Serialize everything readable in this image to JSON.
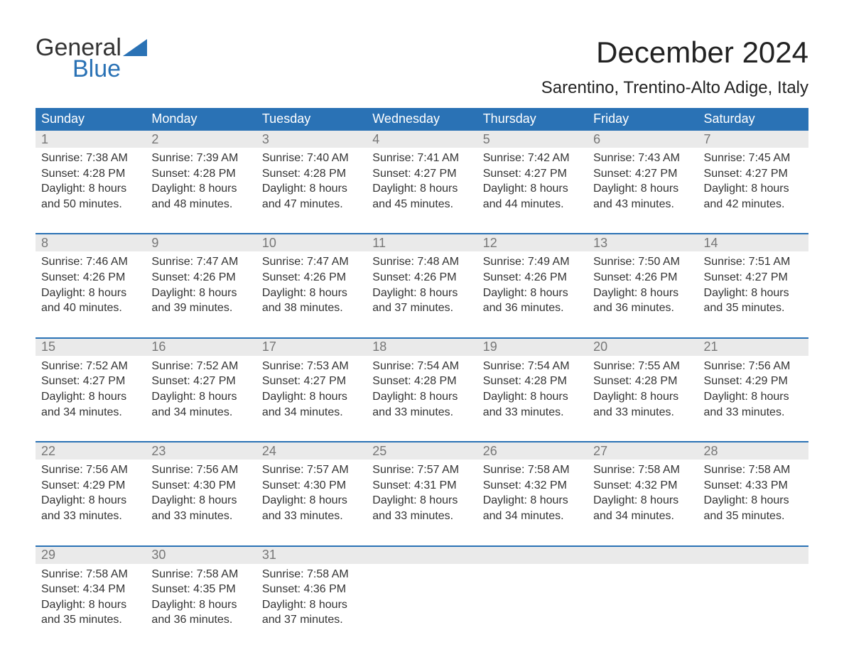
{
  "brand": {
    "word1": "General",
    "word2": "Blue",
    "accent_color": "#2a72b5"
  },
  "title": {
    "month": "December 2024",
    "location": "Sarentino, Trentino-Alto Adige, Italy"
  },
  "columns": [
    "Sunday",
    "Monday",
    "Tuesday",
    "Wednesday",
    "Thursday",
    "Friday",
    "Saturday"
  ],
  "colors": {
    "header_bg": "#2a72b5",
    "header_text": "#ffffff",
    "daynum_bg": "#eaeaea",
    "daynum_text": "#777777",
    "body_text": "#333333",
    "rule": "#2a72b5",
    "page_bg": "#ffffff"
  },
  "weeks": [
    [
      {
        "n": "1",
        "sunrise": "Sunrise: 7:38 AM",
        "sunset": "Sunset: 4:28 PM",
        "d1": "Daylight: 8 hours",
        "d2": "and 50 minutes."
      },
      {
        "n": "2",
        "sunrise": "Sunrise: 7:39 AM",
        "sunset": "Sunset: 4:28 PM",
        "d1": "Daylight: 8 hours",
        "d2": "and 48 minutes."
      },
      {
        "n": "3",
        "sunrise": "Sunrise: 7:40 AM",
        "sunset": "Sunset: 4:28 PM",
        "d1": "Daylight: 8 hours",
        "d2": "and 47 minutes."
      },
      {
        "n": "4",
        "sunrise": "Sunrise: 7:41 AM",
        "sunset": "Sunset: 4:27 PM",
        "d1": "Daylight: 8 hours",
        "d2": "and 45 minutes."
      },
      {
        "n": "5",
        "sunrise": "Sunrise: 7:42 AM",
        "sunset": "Sunset: 4:27 PM",
        "d1": "Daylight: 8 hours",
        "d2": "and 44 minutes."
      },
      {
        "n": "6",
        "sunrise": "Sunrise: 7:43 AM",
        "sunset": "Sunset: 4:27 PM",
        "d1": "Daylight: 8 hours",
        "d2": "and 43 minutes."
      },
      {
        "n": "7",
        "sunrise": "Sunrise: 7:45 AM",
        "sunset": "Sunset: 4:27 PM",
        "d1": "Daylight: 8 hours",
        "d2": "and 42 minutes."
      }
    ],
    [
      {
        "n": "8",
        "sunrise": "Sunrise: 7:46 AM",
        "sunset": "Sunset: 4:26 PM",
        "d1": "Daylight: 8 hours",
        "d2": "and 40 minutes."
      },
      {
        "n": "9",
        "sunrise": "Sunrise: 7:47 AM",
        "sunset": "Sunset: 4:26 PM",
        "d1": "Daylight: 8 hours",
        "d2": "and 39 minutes."
      },
      {
        "n": "10",
        "sunrise": "Sunrise: 7:47 AM",
        "sunset": "Sunset: 4:26 PM",
        "d1": "Daylight: 8 hours",
        "d2": "and 38 minutes."
      },
      {
        "n": "11",
        "sunrise": "Sunrise: 7:48 AM",
        "sunset": "Sunset: 4:26 PM",
        "d1": "Daylight: 8 hours",
        "d2": "and 37 minutes."
      },
      {
        "n": "12",
        "sunrise": "Sunrise: 7:49 AM",
        "sunset": "Sunset: 4:26 PM",
        "d1": "Daylight: 8 hours",
        "d2": "and 36 minutes."
      },
      {
        "n": "13",
        "sunrise": "Sunrise: 7:50 AM",
        "sunset": "Sunset: 4:26 PM",
        "d1": "Daylight: 8 hours",
        "d2": "and 36 minutes."
      },
      {
        "n": "14",
        "sunrise": "Sunrise: 7:51 AM",
        "sunset": "Sunset: 4:27 PM",
        "d1": "Daylight: 8 hours",
        "d2": "and 35 minutes."
      }
    ],
    [
      {
        "n": "15",
        "sunrise": "Sunrise: 7:52 AM",
        "sunset": "Sunset: 4:27 PM",
        "d1": "Daylight: 8 hours",
        "d2": "and 34 minutes."
      },
      {
        "n": "16",
        "sunrise": "Sunrise: 7:52 AM",
        "sunset": "Sunset: 4:27 PM",
        "d1": "Daylight: 8 hours",
        "d2": "and 34 minutes."
      },
      {
        "n": "17",
        "sunrise": "Sunrise: 7:53 AM",
        "sunset": "Sunset: 4:27 PM",
        "d1": "Daylight: 8 hours",
        "d2": "and 34 minutes."
      },
      {
        "n": "18",
        "sunrise": "Sunrise: 7:54 AM",
        "sunset": "Sunset: 4:28 PM",
        "d1": "Daylight: 8 hours",
        "d2": "and 33 minutes."
      },
      {
        "n": "19",
        "sunrise": "Sunrise: 7:54 AM",
        "sunset": "Sunset: 4:28 PM",
        "d1": "Daylight: 8 hours",
        "d2": "and 33 minutes."
      },
      {
        "n": "20",
        "sunrise": "Sunrise: 7:55 AM",
        "sunset": "Sunset: 4:28 PM",
        "d1": "Daylight: 8 hours",
        "d2": "and 33 minutes."
      },
      {
        "n": "21",
        "sunrise": "Sunrise: 7:56 AM",
        "sunset": "Sunset: 4:29 PM",
        "d1": "Daylight: 8 hours",
        "d2": "and 33 minutes."
      }
    ],
    [
      {
        "n": "22",
        "sunrise": "Sunrise: 7:56 AM",
        "sunset": "Sunset: 4:29 PM",
        "d1": "Daylight: 8 hours",
        "d2": "and 33 minutes."
      },
      {
        "n": "23",
        "sunrise": "Sunrise: 7:56 AM",
        "sunset": "Sunset: 4:30 PM",
        "d1": "Daylight: 8 hours",
        "d2": "and 33 minutes."
      },
      {
        "n": "24",
        "sunrise": "Sunrise: 7:57 AM",
        "sunset": "Sunset: 4:30 PM",
        "d1": "Daylight: 8 hours",
        "d2": "and 33 minutes."
      },
      {
        "n": "25",
        "sunrise": "Sunrise: 7:57 AM",
        "sunset": "Sunset: 4:31 PM",
        "d1": "Daylight: 8 hours",
        "d2": "and 33 minutes."
      },
      {
        "n": "26",
        "sunrise": "Sunrise: 7:58 AM",
        "sunset": "Sunset: 4:32 PM",
        "d1": "Daylight: 8 hours",
        "d2": "and 34 minutes."
      },
      {
        "n": "27",
        "sunrise": "Sunrise: 7:58 AM",
        "sunset": "Sunset: 4:32 PM",
        "d1": "Daylight: 8 hours",
        "d2": "and 34 minutes."
      },
      {
        "n": "28",
        "sunrise": "Sunrise: 7:58 AM",
        "sunset": "Sunset: 4:33 PM",
        "d1": "Daylight: 8 hours",
        "d2": "and 35 minutes."
      }
    ],
    [
      {
        "n": "29",
        "sunrise": "Sunrise: 7:58 AM",
        "sunset": "Sunset: 4:34 PM",
        "d1": "Daylight: 8 hours",
        "d2": "and 35 minutes."
      },
      {
        "n": "30",
        "sunrise": "Sunrise: 7:58 AM",
        "sunset": "Sunset: 4:35 PM",
        "d1": "Daylight: 8 hours",
        "d2": "and 36 minutes."
      },
      {
        "n": "31",
        "sunrise": "Sunrise: 7:58 AM",
        "sunset": "Sunset: 4:36 PM",
        "d1": "Daylight: 8 hours",
        "d2": "and 37 minutes."
      },
      null,
      null,
      null,
      null
    ]
  ]
}
